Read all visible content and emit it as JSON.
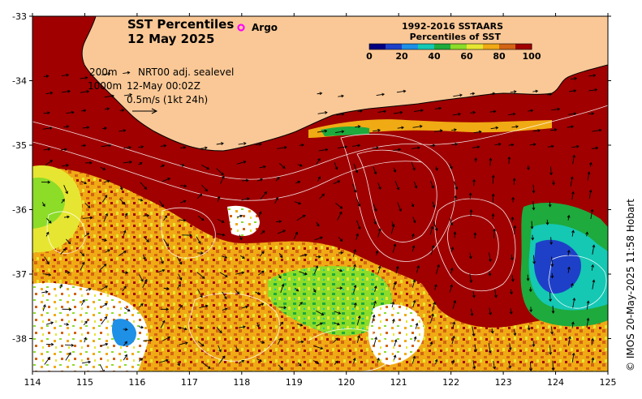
{
  "title": {
    "line1": "SST Percentiles",
    "line2": "12 May 2025"
  },
  "argo_label": "Argo",
  "legend": {
    "title1": "1992-2016 SSTAARS",
    "title2": "Percentiles of SST",
    "ticks": [
      "0",
      "20",
      "40",
      "60",
      "80",
      "100"
    ],
    "colors": [
      "#000080",
      "#1e40c8",
      "#1e90e6",
      "#14c8b4",
      "#1eaa3c",
      "#8cdc28",
      "#e6e632",
      "#f0aa14",
      "#d26414",
      "#a00000"
    ]
  },
  "info": {
    "contour1": "200m",
    "contour2": "1000m",
    "sealevel": "NRT00 adj. sealevel",
    "time": "12-May 00:02Z",
    "scale": "0.5m/s (1kt 24h)"
  },
  "credit": "© IMOS 20-May-2025 11:58 Hobart",
  "axes": {
    "x_ticks": [
      "114",
      "115",
      "116",
      "117",
      "118",
      "119",
      "120",
      "121",
      "122",
      "123",
      "124",
      "125"
    ],
    "y_ticks": [
      "-33",
      "-34",
      "-35",
      "-36",
      "-37",
      "-38"
    ]
  },
  "colors": {
    "land": "#fac896",
    "warm": "#a00000",
    "high": "#d26414",
    "mid": "#f0aa14",
    "yellow": "#e6e632",
    "lightgreen": "#8cdc28",
    "green": "#1eaa3c",
    "teal": "#14c8b4",
    "blue": "#1e90e6",
    "darkblue": "#1e40c8",
    "argo": "#ff00ff"
  }
}
